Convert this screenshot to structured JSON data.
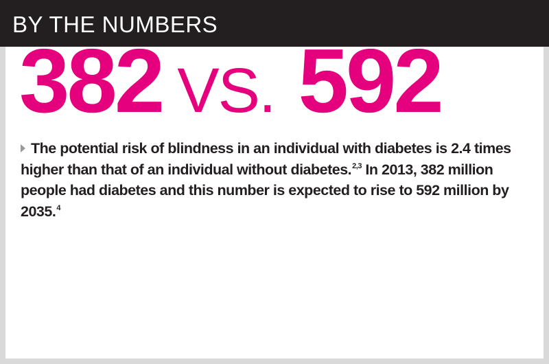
{
  "header": {
    "title": "BY THE NUMBERS"
  },
  "headline": {
    "number_a": "382",
    "separator": "VS.",
    "number_b": "592",
    "color": "#e5007e"
  },
  "body": {
    "bullet_icon": "triangle-bullet-icon",
    "segment_1": "The potential risk of blindness in an individual with diabetes is 2.4 times higher than that of an individual without diabetes.",
    "ref_1": "2,3",
    "segment_2": " In 2013, 382 million people had diabetes and this number is expected to rise to 592 million by 2035.",
    "ref_2": "4"
  },
  "colors": {
    "header_bg": "#231f20",
    "accent": "#e5007e",
    "frame": "#d9d9d9"
  }
}
